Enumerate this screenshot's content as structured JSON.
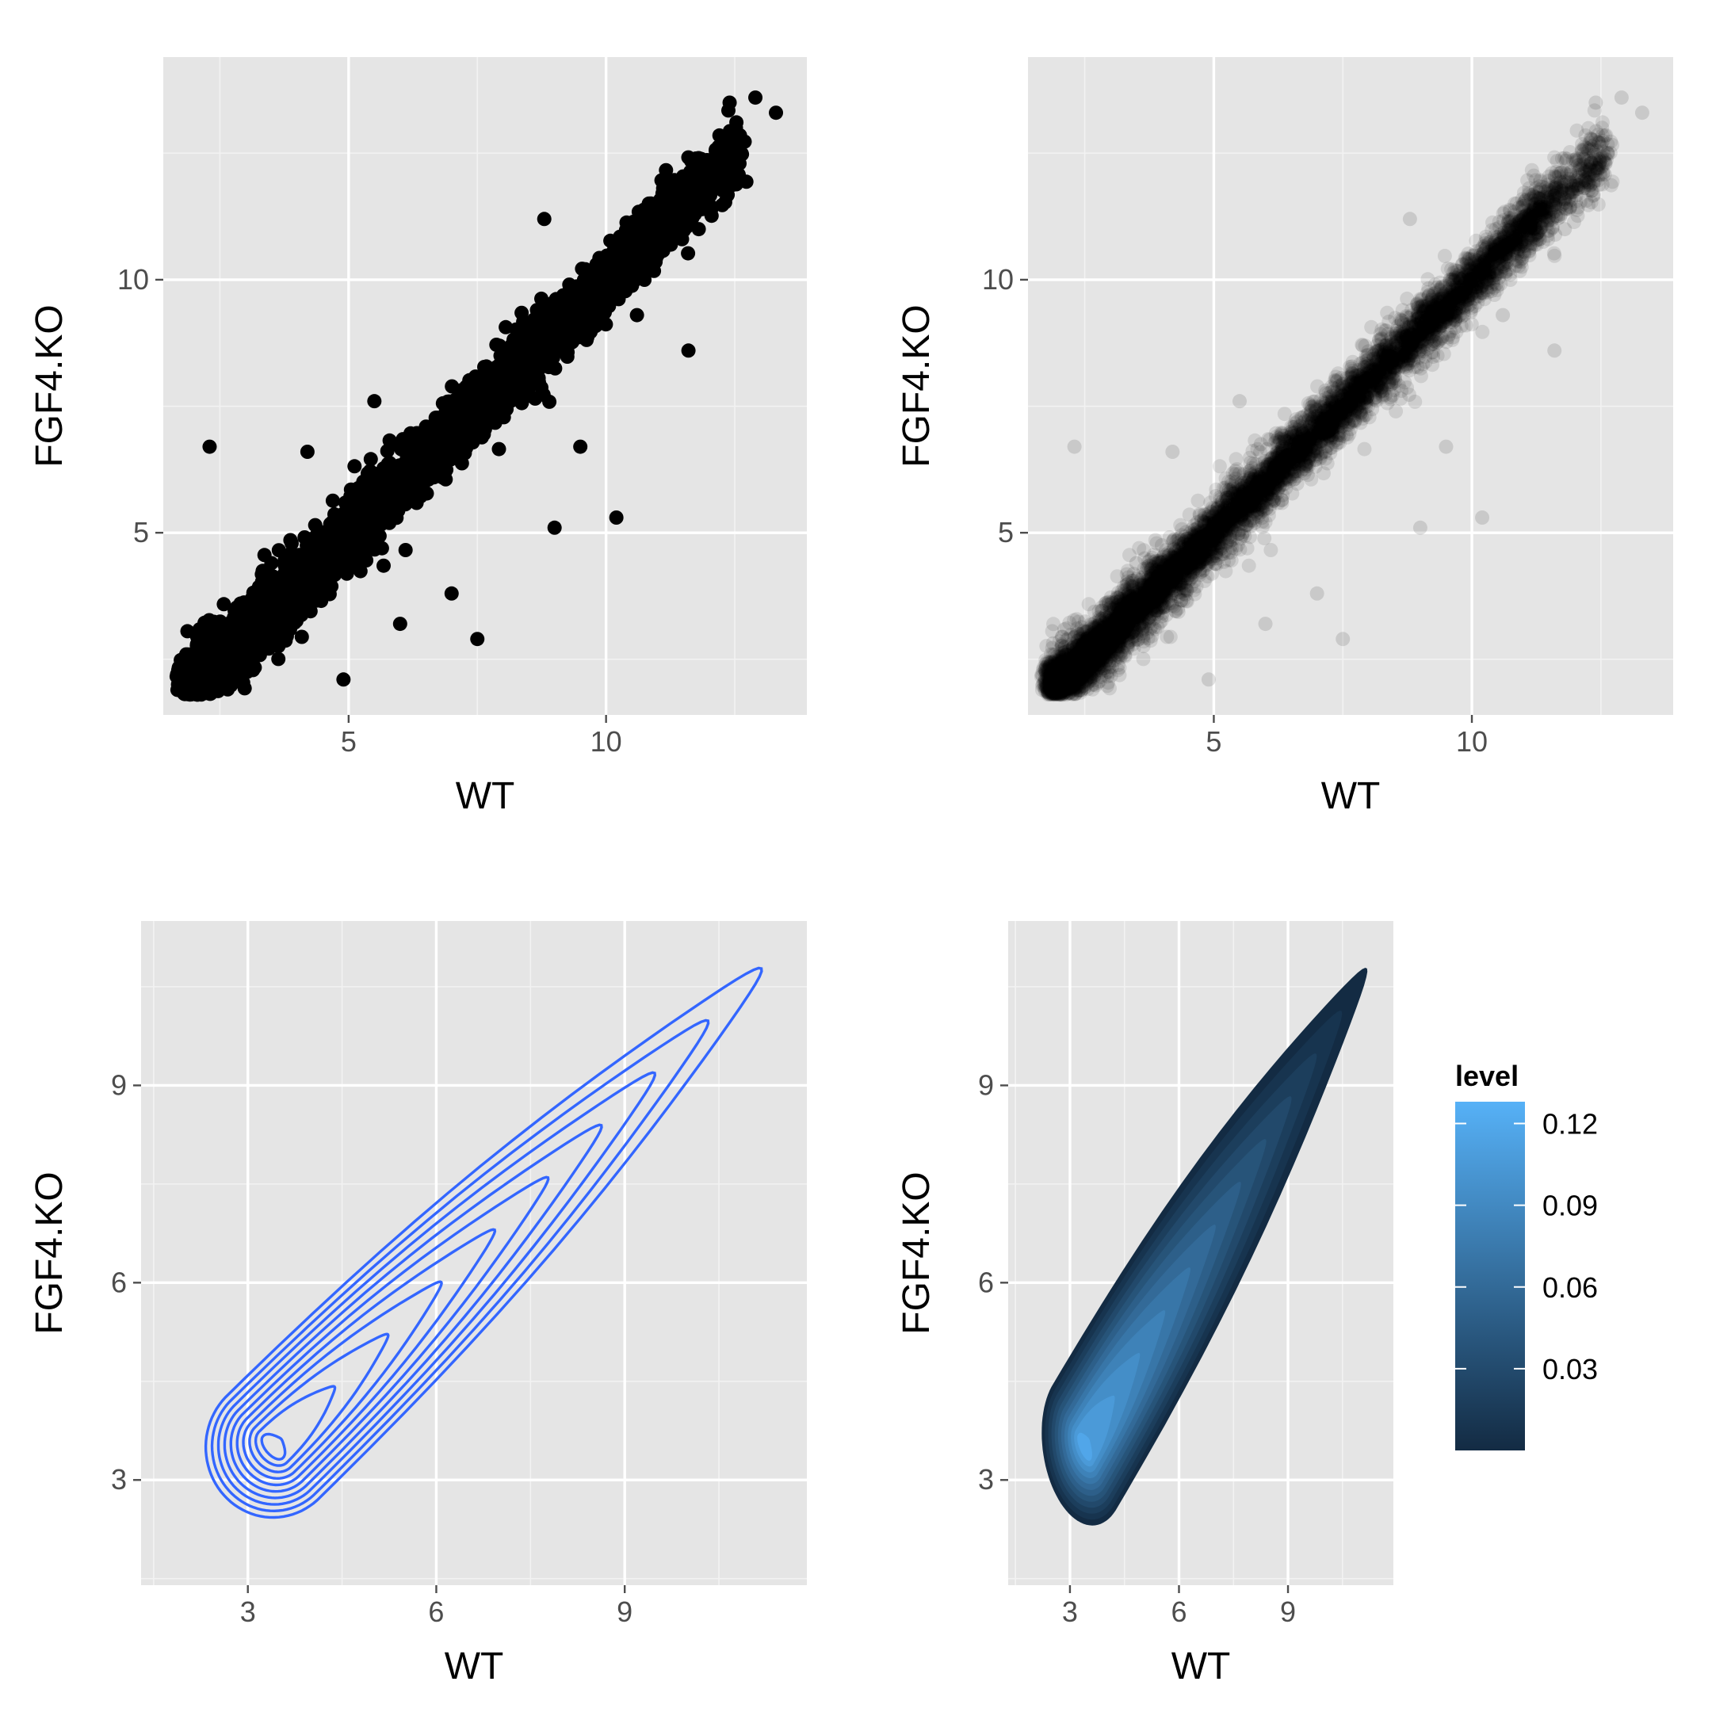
{
  "chart_data": [
    {
      "panel": "top-left",
      "type": "scatter",
      "xlabel": "WT",
      "ylabel": "FGF4.KO",
      "xlim": [
        1.4,
        13.9
      ],
      "ylim": [
        1.4,
        14.4
      ],
      "x_ticks": [
        5,
        10
      ],
      "y_ticks": [
        5,
        10
      ],
      "x_minor": [
        2.5,
        7.5,
        12.5
      ],
      "y_minor": [
        2.5,
        7.5,
        12.5
      ],
      "grid": true,
      "point_color": "#000000",
      "point_alpha": 1.0,
      "trend": {
        "slope": 1.0,
        "intercept": 0.0
      },
      "outliers": [
        [
          2.3,
          6.7
        ],
        [
          3.5,
          4.4
        ],
        [
          2.9,
          3.6
        ],
        [
          4.9,
          2.1
        ],
        [
          6.0,
          3.2
        ],
        [
          9.5,
          6.7
        ],
        [
          10.2,
          5.3
        ],
        [
          9.0,
          5.1
        ],
        [
          10.6,
          9.3
        ],
        [
          12.4,
          13.5
        ],
        [
          12.9,
          13.6
        ],
        [
          13.3,
          13.3
        ],
        [
          8.8,
          11.2
        ],
        [
          7.5,
          2.9
        ],
        [
          11.8,
          11.0
        ],
        [
          5.5,
          7.6
        ],
        [
          7.0,
          3.8
        ],
        [
          11.6,
          8.6
        ],
        [
          4.2,
          6.6
        ]
      ]
    },
    {
      "panel": "top-right",
      "type": "scatter",
      "xlabel": "WT",
      "ylabel": "FGF4.KO",
      "xlim": [
        1.4,
        13.9
      ],
      "ylim": [
        1.4,
        14.4
      ],
      "x_ticks": [
        5,
        10
      ],
      "y_ticks": [
        5,
        10
      ],
      "x_minor": [
        2.5,
        7.5,
        12.5
      ],
      "y_minor": [
        2.5,
        7.5,
        12.5
      ],
      "grid": true,
      "point_color": "#000000",
      "point_alpha": 0.1,
      "trend": {
        "slope": 1.0,
        "intercept": 0.0
      },
      "outliers": [
        [
          2.3,
          6.7
        ],
        [
          3.5,
          4.4
        ],
        [
          2.9,
          3.6
        ],
        [
          4.9,
          2.1
        ],
        [
          6.0,
          3.2
        ],
        [
          9.5,
          6.7
        ],
        [
          10.2,
          5.3
        ],
        [
          9.0,
          5.1
        ],
        [
          10.6,
          9.3
        ],
        [
          12.4,
          13.5
        ],
        [
          12.9,
          13.6
        ],
        [
          13.3,
          13.3
        ],
        [
          8.8,
          11.2
        ],
        [
          7.5,
          2.9
        ],
        [
          11.8,
          11.0
        ],
        [
          5.5,
          7.6
        ],
        [
          7.0,
          3.8
        ],
        [
          11.6,
          8.6
        ],
        [
          4.2,
          6.6
        ]
      ]
    },
    {
      "panel": "bottom-left",
      "type": "contour",
      "xlabel": "WT",
      "ylabel": "FGF4.KO",
      "xlim": [
        1.3,
        11.9
      ],
      "ylim": [
        1.4,
        11.5
      ],
      "x_ticks": [
        3,
        6,
        9
      ],
      "y_ticks": [
        3,
        6,
        9
      ],
      "x_minor": [
        1.5,
        4.5,
        7.5,
        10.5
      ],
      "y_minor": [
        1.5,
        4.5,
        7.5,
        10.5
      ],
      "grid": true,
      "line_color": "#3366ff",
      "density": {
        "center": [
          3.4,
          3.5
        ],
        "end": [
          11.2,
          10.8
        ],
        "spread": [
          0.55,
          0.18
        ],
        "levels": 10
      }
    },
    {
      "panel": "bottom-right",
      "type": "filled-contour",
      "xlabel": "WT",
      "ylabel": "FGF4.KO",
      "xlim": [
        1.3,
        11.9
      ],
      "ylim": [
        1.4,
        11.5
      ],
      "x_ticks": [
        3,
        6,
        9
      ],
      "y_ticks": [
        3,
        6,
        9
      ],
      "x_minor": [
        1.5,
        4.5,
        7.5,
        10.5
      ],
      "y_minor": [
        1.5,
        4.5,
        7.5,
        10.5
      ],
      "grid": true,
      "fill_low": "#132b43",
      "fill_high": "#56b1f7",
      "density": {
        "center": [
          3.4,
          3.5
        ],
        "end": [
          11.2,
          10.8
        ],
        "spread": [
          0.6,
          0.22
        ],
        "levels": 12
      },
      "legend": {
        "title": "level",
        "position": "right",
        "range": [
          0.0,
          0.128
        ],
        "ticks": [
          0.03,
          0.06,
          0.09,
          0.12
        ],
        "tick_labels": [
          "0.03",
          "0.06",
          "0.09",
          "0.12"
        ]
      }
    }
  ]
}
